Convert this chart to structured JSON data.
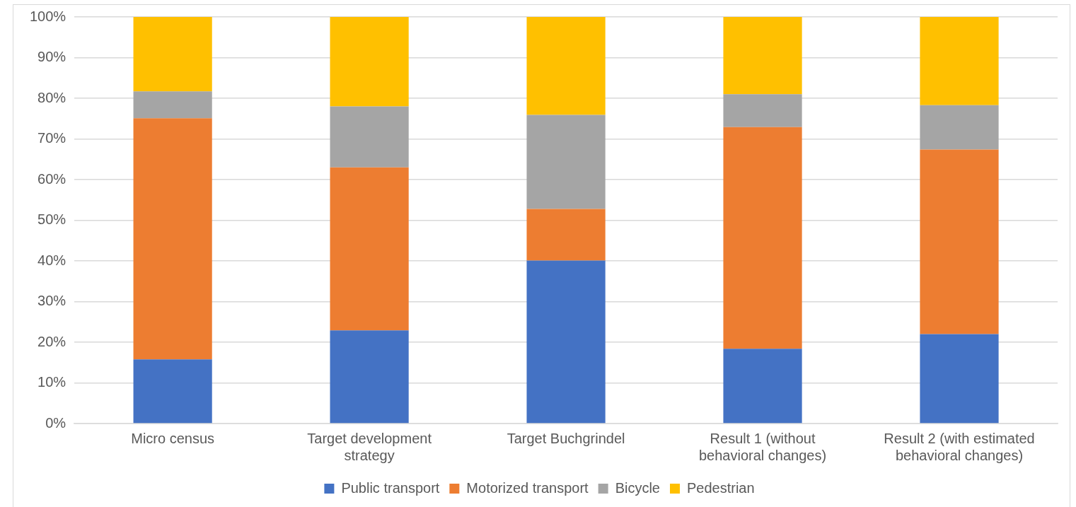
{
  "chart_data": {
    "type": "bar",
    "stacked": true,
    "categories": [
      "Micro census",
      "Target development strategy",
      "Target Buchgrindel",
      "Result 1 (without behavioral changes)",
      "Result 2 (with estimated behavioral changes)"
    ],
    "series": [
      {
        "name": "Public transport",
        "color": "#4472c4",
        "values": [
          15.8,
          22.9,
          40.1,
          18.4,
          22.0
        ]
      },
      {
        "name": "Motorized transport",
        "color": "#ed7d31",
        "values": [
          59.3,
          40.1,
          12.7,
          54.5,
          45.4
        ]
      },
      {
        "name": "Bicycle",
        "color": "#a5a5a5",
        "values": [
          6.6,
          15.0,
          23.1,
          8.1,
          10.9
        ]
      },
      {
        "name": "Pedestrian",
        "color": "#ffc000",
        "values": [
          18.3,
          22.0,
          24.1,
          19.0,
          21.7
        ]
      }
    ],
    "ylim": [
      0,
      100
    ],
    "yticks": [
      {
        "value": 0,
        "label": "0%"
      },
      {
        "value": 10,
        "label": "10%"
      },
      {
        "value": 20,
        "label": "20%"
      },
      {
        "value": 30,
        "label": "30%"
      },
      {
        "value": 40,
        "label": "40%"
      },
      {
        "value": 50,
        "label": "50%"
      },
      {
        "value": 60,
        "label": "60%"
      },
      {
        "value": 70,
        "label": "70%"
      },
      {
        "value": 80,
        "label": "80%"
      },
      {
        "value": 90,
        "label": "90%"
      },
      {
        "value": 100,
        "label": "100%"
      }
    ],
    "grid": "y",
    "legend": "bottom"
  }
}
